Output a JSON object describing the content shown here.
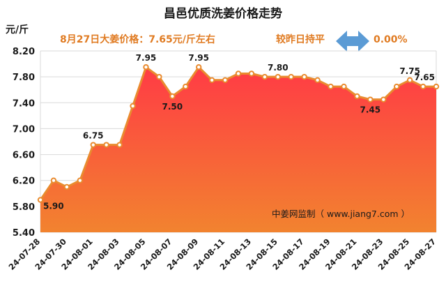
{
  "title": "昌邑优质洗姜价格走势",
  "subtitle_left": "8月27日大姜价格：7.65元/斤左右",
  "subtitle_right": "较昨日持平",
  "change_value": "0.00%",
  "unit_label": "元/斤",
  "watermark": "中姜网监制（ www.jiang7.com ）",
  "colors": {
    "line": "#e98b2f",
    "fill_top": "#ff3b45",
    "fill_bottom": "#f2832f",
    "arrow": "#5b9bd5",
    "subtitle": "#e07b22"
  },
  "chart_data": {
    "type": "area",
    "ylim": [
      5.4,
      8.2
    ],
    "yticks": [
      "5.40",
      "5.80",
      "6.20",
      "6.60",
      "7.00",
      "7.40",
      "7.80",
      "8.20"
    ],
    "x": [
      "24-07-28",
      "24-07-29",
      "24-07-30",
      "24-07-31",
      "24-08-01",
      "24-08-02",
      "24-08-03",
      "24-08-04",
      "24-08-05",
      "24-08-06",
      "24-08-07",
      "24-08-08",
      "24-08-09",
      "24-08-10",
      "24-08-11",
      "24-08-12",
      "24-08-13",
      "24-08-14",
      "24-08-15",
      "24-08-16",
      "24-08-17",
      "24-08-18",
      "24-08-19",
      "24-08-20",
      "24-08-21",
      "24-08-22",
      "24-08-23",
      "24-08-24",
      "24-08-25",
      "24-08-26",
      "24-08-27"
    ],
    "xtick_labels": [
      "24-07-28",
      "24-07-30",
      "24-08-01",
      "24-08-03",
      "24-08-05",
      "24-08-07",
      "24-08-09",
      "24-08-11",
      "24-08-13",
      "24-08-15",
      "24-08-17",
      "24-08-19",
      "24-08-21",
      "24-08-23",
      "24-08-25",
      "24-08-27"
    ],
    "values": [
      5.9,
      6.2,
      6.1,
      6.2,
      6.75,
      6.75,
      6.75,
      7.35,
      7.95,
      7.8,
      7.5,
      7.65,
      7.95,
      7.75,
      7.75,
      7.85,
      7.85,
      7.8,
      7.8,
      7.8,
      7.8,
      7.75,
      7.65,
      7.65,
      7.5,
      7.45,
      7.45,
      7.65,
      7.75,
      7.65,
      7.65
    ],
    "data_labels": [
      {
        "index": 0,
        "text": "5.90"
      },
      {
        "index": 4,
        "text": "6.75"
      },
      {
        "index": 8,
        "text": "7.95"
      },
      {
        "index": 10,
        "text": "7.50"
      },
      {
        "index": 12,
        "text": "7.95"
      },
      {
        "index": 18,
        "text": "7.80"
      },
      {
        "index": 25,
        "text": "7.45"
      },
      {
        "index": 28,
        "text": "7.75"
      },
      {
        "index": 30,
        "text": "7.65"
      }
    ],
    "grid": true
  }
}
